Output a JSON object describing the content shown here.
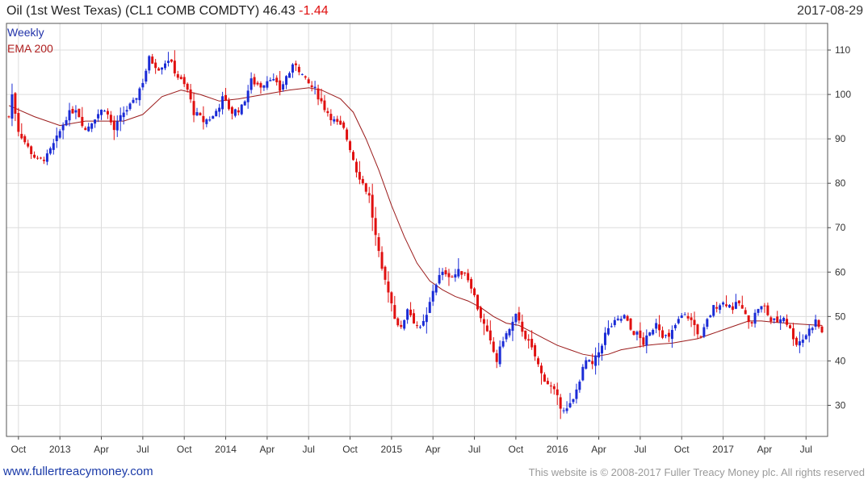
{
  "header": {
    "title": "Oil (1st West Texas) (CL1 COMB COMDTY) 46.43",
    "change": "-1.44",
    "date": "2017-08-29"
  },
  "footer": {
    "site": "www.fullertreacymoney.com",
    "copyright": "This website is © 2008-2017 Fuller Treacy Money plc. All rights reserved"
  },
  "colors": {
    "up": "#1a2bd6",
    "down": "#e01010",
    "ema": "#9b1b1b",
    "grid": "#dcdcdc",
    "legend_weekly": "#2233aa",
    "legend_ema": "#b02020"
  },
  "chart_data": {
    "type": "candlestick",
    "title": "Oil (1st West Texas) (CL1 COMB COMDTY)",
    "last": 46.43,
    "change": -1.44,
    "legend": [
      "Weekly",
      "EMA 200"
    ],
    "ylim": [
      23,
      116
    ],
    "y_ticks": [
      30,
      40,
      50,
      60,
      70,
      80,
      90,
      100,
      110
    ],
    "x_range": [
      0,
      255
    ],
    "x_ticks": [
      {
        "label": "Oct",
        "week": 3
      },
      {
        "label": "2013",
        "week": 16
      },
      {
        "label": "Apr",
        "week": 29
      },
      {
        "label": "Jul",
        "week": 42
      },
      {
        "label": "Oct",
        "week": 55
      },
      {
        "label": "2014",
        "week": 68
      },
      {
        "label": "Apr",
        "week": 81
      },
      {
        "label": "Jul",
        "week": 94
      },
      {
        "label": "Oct",
        "week": 107
      },
      {
        "label": "2015",
        "week": 120
      },
      {
        "label": "Apr",
        "week": 133
      },
      {
        "label": "Jul",
        "week": 146
      },
      {
        "label": "Oct",
        "week": 159
      },
      {
        "label": "2016",
        "week": 172
      },
      {
        "label": "Apr",
        "week": 185
      },
      {
        "label": "Jul",
        "week": 198
      },
      {
        "label": "Oct",
        "week": 211
      },
      {
        "label": "2017",
        "week": 224
      },
      {
        "label": "Apr",
        "week": 237
      },
      {
        "label": "Jul",
        "week": 250
      }
    ],
    "anchors": [
      [
        0,
        95
      ],
      [
        1,
        100
      ],
      [
        3,
        92
      ],
      [
        6,
        88
      ],
      [
        9,
        85
      ],
      [
        12,
        86
      ],
      [
        15,
        90
      ],
      [
        18,
        95
      ],
      [
        21,
        97
      ],
      [
        24,
        92
      ],
      [
        27,
        95
      ],
      [
        30,
        97
      ],
      [
        33,
        92
      ],
      [
        36,
        96
      ],
      [
        39,
        98
      ],
      [
        42,
        103
      ],
      [
        44,
        108
      ],
      [
        47,
        106
      ],
      [
        50,
        108
      ],
      [
        53,
        104
      ],
      [
        56,
        101
      ],
      [
        58,
        96
      ],
      [
        61,
        94
      ],
      [
        64,
        95
      ],
      [
        67,
        99
      ],
      [
        70,
        96
      ],
      [
        73,
        97
      ],
      [
        76,
        103
      ],
      [
        79,
        102
      ],
      [
        82,
        104
      ],
      [
        85,
        101
      ],
      [
        87,
        104
      ],
      [
        90,
        107
      ],
      [
        93,
        103
      ],
      [
        96,
        101
      ],
      [
        99,
        97
      ],
      [
        102,
        94
      ],
      [
        105,
        92
      ],
      [
        107,
        88
      ],
      [
        109,
        83
      ],
      [
        111,
        80
      ],
      [
        113,
        77
      ],
      [
        115,
        68
      ],
      [
        117,
        60
      ],
      [
        119,
        56
      ],
      [
        121,
        50
      ],
      [
        123,
        47
      ],
      [
        125,
        52
      ],
      [
        127,
        49
      ],
      [
        129,
        47
      ],
      [
        131,
        50
      ],
      [
        133,
        56
      ],
      [
        135,
        59
      ],
      [
        137,
        60
      ],
      [
        139,
        59
      ],
      [
        141,
        60
      ],
      [
        143,
        60
      ],
      [
        145,
        57
      ],
      [
        147,
        52
      ],
      [
        149,
        48
      ],
      [
        151,
        44
      ],
      [
        153,
        40
      ],
      [
        155,
        45
      ],
      [
        157,
        47
      ],
      [
        159,
        50
      ],
      [
        161,
        47
      ],
      [
        163,
        44
      ],
      [
        165,
        41
      ],
      [
        167,
        37
      ],
      [
        169,
        35
      ],
      [
        171,
        33
      ],
      [
        173,
        30
      ],
      [
        175,
        29
      ],
      [
        177,
        31
      ],
      [
        179,
        36
      ],
      [
        181,
        40
      ],
      [
        183,
        39
      ],
      [
        185,
        42
      ],
      [
        187,
        46
      ],
      [
        189,
        48
      ],
      [
        191,
        49
      ],
      [
        193,
        50
      ],
      [
        195,
        47
      ],
      [
        197,
        46
      ],
      [
        199,
        44
      ],
      [
        201,
        46
      ],
      [
        203,
        49
      ],
      [
        205,
        46
      ],
      [
        207,
        45
      ],
      [
        209,
        48
      ],
      [
        211,
        50
      ],
      [
        213,
        50
      ],
      [
        215,
        48
      ],
      [
        217,
        45
      ],
      [
        219,
        49
      ],
      [
        221,
        52
      ],
      [
        223,
        53
      ],
      [
        225,
        53
      ],
      [
        227,
        52
      ],
      [
        229,
        53
      ],
      [
        231,
        50
      ],
      [
        233,
        49
      ],
      [
        235,
        52
      ],
      [
        237,
        52
      ],
      [
        239,
        49
      ],
      [
        241,
        49
      ],
      [
        243,
        50
      ],
      [
        245,
        47
      ],
      [
        247,
        44
      ],
      [
        249,
        45
      ],
      [
        251,
        47
      ],
      [
        253,
        49
      ],
      [
        255,
        46.4
      ]
    ],
    "ema200": [
      [
        0,
        97.5
      ],
      [
        8,
        95
      ],
      [
        16,
        93
      ],
      [
        24,
        94
      ],
      [
        30,
        94
      ],
      [
        36,
        94
      ],
      [
        42,
        95.5
      ],
      [
        48,
        99.5
      ],
      [
        54,
        101
      ],
      [
        60,
        100
      ],
      [
        66,
        98.5
      ],
      [
        72,
        99
      ],
      [
        80,
        100
      ],
      [
        88,
        101
      ],
      [
        94,
        101.5
      ],
      [
        98,
        101
      ],
      [
        104,
        99
      ],
      [
        108,
        96
      ],
      [
        112,
        90
      ],
      [
        116,
        83
      ],
      [
        120,
        75
      ],
      [
        124,
        68
      ],
      [
        128,
        62
      ],
      [
        132,
        58
      ],
      [
        136,
        56
      ],
      [
        140,
        54.5
      ],
      [
        144,
        53.5
      ],
      [
        148,
        52
      ],
      [
        152,
        50
      ],
      [
        156,
        48.5
      ],
      [
        160,
        48
      ],
      [
        164,
        46.5
      ],
      [
        168,
        45
      ],
      [
        172,
        43.5
      ],
      [
        176,
        42.5
      ],
      [
        180,
        41.5
      ],
      [
        184,
        41
      ],
      [
        188,
        41.5
      ],
      [
        192,
        42.5
      ],
      [
        196,
        43
      ],
      [
        200,
        43.5
      ],
      [
        204,
        43.8
      ],
      [
        208,
        44
      ],
      [
        212,
        44.5
      ],
      [
        216,
        45
      ],
      [
        220,
        46
      ],
      [
        224,
        47
      ],
      [
        228,
        48
      ],
      [
        232,
        49
      ],
      [
        236,
        49
      ],
      [
        240,
        48.7
      ],
      [
        244,
        48.5
      ],
      [
        248,
        48.3
      ],
      [
        252,
        48.1
      ],
      [
        255,
        48
      ]
    ]
  }
}
